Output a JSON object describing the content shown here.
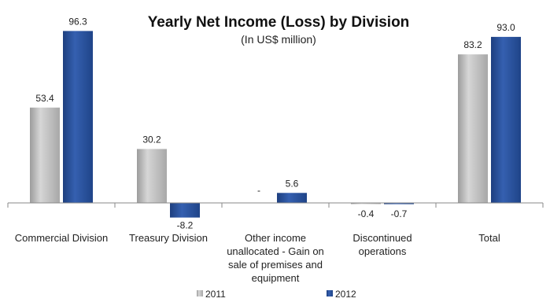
{
  "chart_data": {
    "type": "bar",
    "title": "Yearly Net Income (Loss) by Division",
    "subtitle": "(In US$ million)",
    "xlabel": "",
    "ylabel": "",
    "categories": [
      [
        "Commercial Division"
      ],
      [
        "Treasury Division"
      ],
      [
        "Other income",
        "unallocated - Gain on",
        "sale of premises and",
        "equipment"
      ],
      [
        "Discontinued",
        "operations"
      ],
      [
        "Total"
      ]
    ],
    "series": [
      {
        "name": "2011",
        "color": "#b8b8b8",
        "values": [
          53.4,
          30.2,
          null,
          -0.4,
          83.2
        ],
        "labels": [
          "53.4",
          "30.2",
          "-",
          "-0.4",
          "83.2"
        ]
      },
      {
        "name": "2012",
        "color": "#27509b",
        "values": [
          96.3,
          -8.2,
          5.6,
          -0.7,
          93.0
        ],
        "labels": [
          "96.3",
          "-8.2",
          "5.6",
          "-0.7",
          "93.0"
        ]
      }
    ],
    "ylim": [
      -15,
      100
    ],
    "grid": false,
    "legend_position": "bottom"
  }
}
